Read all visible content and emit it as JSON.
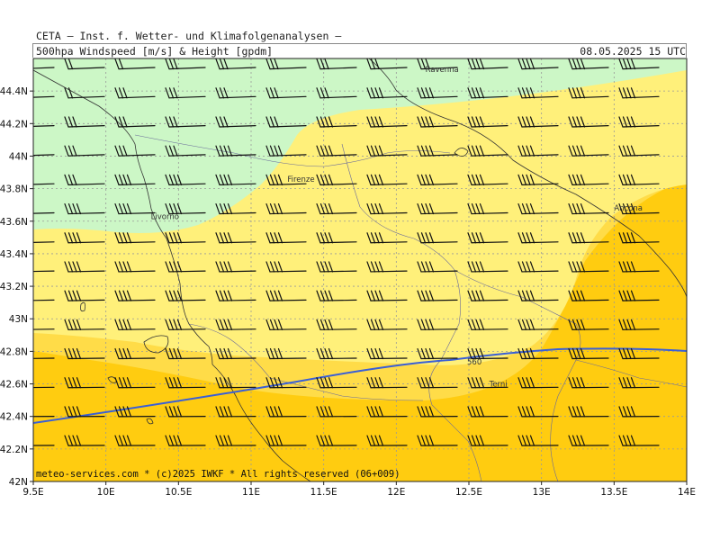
{
  "header": {
    "line1": "CETA – Inst. f. Wetter- und Klimafolgenanalysen –",
    "line2": "500hpa Windspeed [m/s] & Height [gpdm]",
    "datetime": "08.05.2025 15 UTC"
  },
  "map": {
    "lon_range": [
      9.5,
      14.0
    ],
    "lat_range": [
      42.0,
      44.5
    ],
    "x_ticks": [
      "9.5E",
      "10E",
      "10.5E",
      "11E",
      "11.5E",
      "12E",
      "12.5E",
      "13E",
      "13.5E",
      "14E"
    ],
    "y_ticks": [
      "42N",
      "42.2N",
      "42.4N",
      "42.6N",
      "42.8N",
      "43N",
      "43.2N",
      "43.4N",
      "43.6N",
      "43.8N",
      "44N",
      "44.2N",
      "44.4N"
    ],
    "cities": [
      {
        "name": "Ravenna",
        "lon": 12.2,
        "lat": 44.42
      },
      {
        "name": "Firenze",
        "lon": 11.25,
        "lat": 43.77
      },
      {
        "name": "Livorno",
        "lon": 10.31,
        "lat": 43.55
      },
      {
        "name": "Ancona",
        "lon": 13.5,
        "lat": 43.6
      },
      {
        "name": "Terni",
        "lon": 12.64,
        "lat": 42.56
      }
    ],
    "contour_label": "560",
    "colors": {
      "light_green": "#ccf7c6",
      "light_yellow": "#fff07a",
      "yellow": "#ffdc48",
      "orange_yellow": "#ffcc10",
      "contour": "#3a5fd6",
      "barb": "#111111",
      "grid": "#999999"
    }
  },
  "footer": {
    "copyright": "meteo-services.com * (c)2025 IWKF * All rights reserved (06+009)"
  }
}
